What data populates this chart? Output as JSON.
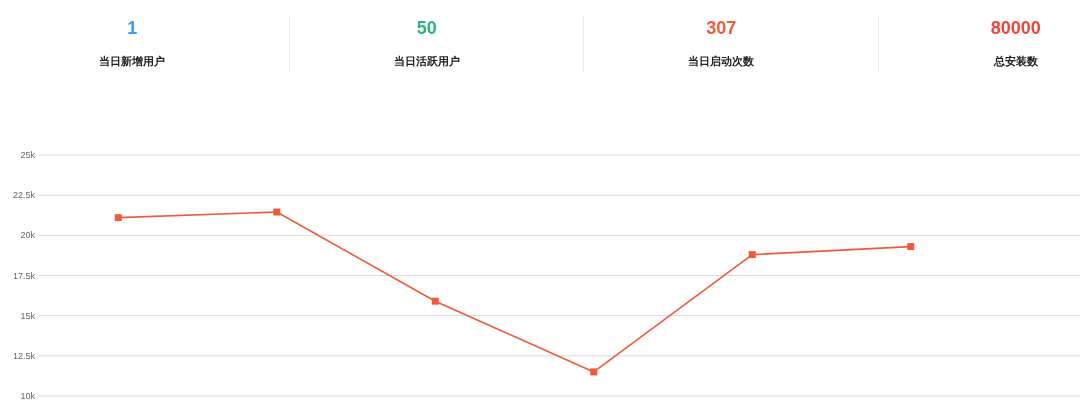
{
  "chart_data": [
    {
      "type": "other",
      "categories": [
        "当日新增用户",
        "当日活跃用户",
        "当日启动次数",
        "总安装数"
      ],
      "values": [
        1,
        50,
        307,
        80000
      ],
      "data_labels": true,
      "colors": [
        "#3d9cf0",
        "#2bb57a",
        "#ef5b3d",
        "#f4433a"
      ]
    },
    {
      "type": "line",
      "categories": [
        null,
        null,
        null,
        null,
        null,
        null,
        null
      ],
      "series": [
        {
          "color": "#ee5a3c",
          "values": [
            21100,
            21450,
            15900,
            11500,
            18800,
            19300,
            null
          ]
        }
      ],
      "ylim": [
        10000,
        25000
      ],
      "yticks": [
        {
          "value": 10000,
          "label": "10k"
        },
        {
          "value": 12500,
          "label": "12.5k"
        },
        {
          "value": 15000,
          "label": "15k"
        },
        {
          "value": 17500,
          "label": "17.5k"
        },
        {
          "value": 20000,
          "label": "20k"
        },
        {
          "value": 22500,
          "label": "22.5k"
        },
        {
          "value": 25000,
          "label": "25k"
        }
      ],
      "grid": "y",
      "marker": "square",
      "tick_labels": "y"
    }
  ]
}
